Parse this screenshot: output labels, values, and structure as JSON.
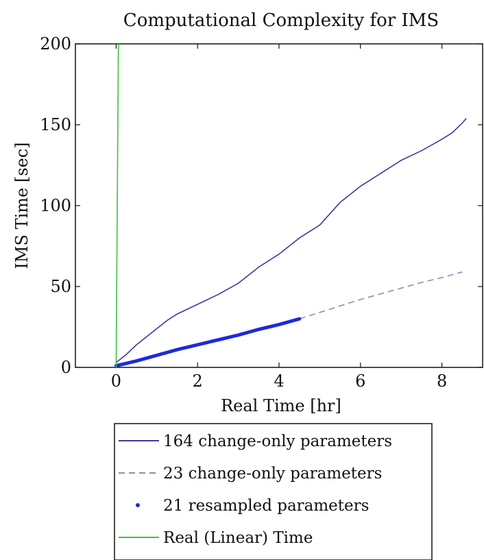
{
  "chart_data": {
    "type": "line",
    "title": "Computational Complexity for IMS",
    "xlabel": "Real Time [hr]",
    "ylabel": "IMS Time [sec]",
    "xlim": [
      -1,
      9
    ],
    "ylim": [
      0,
      200
    ],
    "xticks": [
      0,
      2,
      4,
      6,
      8
    ],
    "yticks": [
      0,
      50,
      100,
      150,
      200
    ],
    "grid": false,
    "legend_position": "below-plot",
    "series": [
      {
        "name": "164 change-only parameters",
        "style": "solid",
        "color": "#3a3a9e",
        "x": [
          0,
          0.25,
          0.5,
          0.75,
          1,
          1.25,
          1.5,
          2,
          2.5,
          3,
          3.5,
          4,
          4.5,
          4.75,
          5,
          5.5,
          6,
          6.5,
          7,
          7.5,
          8,
          8.25,
          8.5,
          8.6
        ],
        "y": [
          3,
          8,
          14,
          19,
          24,
          29,
          33,
          39,
          45,
          52,
          62,
          70,
          80,
          84,
          88,
          102,
          112,
          120,
          128,
          134,
          141,
          145,
          151,
          154
        ]
      },
      {
        "name": "23 change-only parameters",
        "style": "dashed",
        "color": "#8a8ab8",
        "x": [
          4.5,
          5,
          5.5,
          6,
          6.5,
          7,
          7.5,
          8,
          8.5
        ],
        "y": [
          30,
          34,
          38,
          42,
          45.5,
          49,
          52.5,
          55.5,
          59
        ]
      },
      {
        "name": "21 resampled parameters",
        "style": "markers",
        "color": "#1f2bd6",
        "x": [
          0,
          0.5,
          1,
          1.5,
          2,
          2.5,
          3,
          3.5,
          4,
          4.5
        ],
        "y": [
          1,
          4,
          7.5,
          11,
          14,
          17,
          20,
          23.5,
          26.5,
          30
        ]
      },
      {
        "name": "Real (Linear) Time",
        "style": "solid",
        "color": "#3cc43c",
        "x": [
          0,
          0.0556
        ],
        "y": [
          0,
          200
        ]
      }
    ]
  },
  "colors": {
    "axis": "#111111",
    "background": "#ffffff"
  }
}
